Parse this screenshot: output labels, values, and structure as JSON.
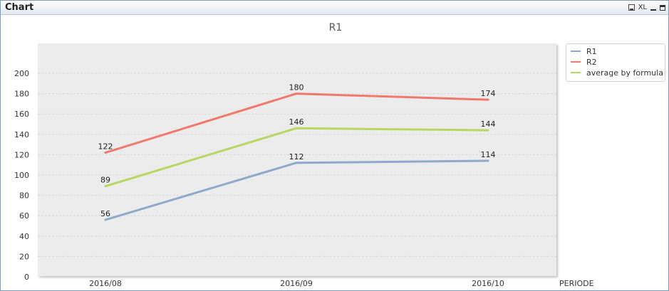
{
  "window": {
    "title": "Chart",
    "icons": [
      "print-icon",
      "xl-icon",
      "minimize-icon",
      "maximize-icon"
    ],
    "xl_label": "XL"
  },
  "chart_data": {
    "type": "line",
    "title": "R1",
    "xlabel": "PERIODE",
    "ylabel": "",
    "categories": [
      "2016/08",
      "2016/09",
      "2016/10"
    ],
    "ylim": [
      0,
      200
    ],
    "yticks": [
      0,
      20,
      40,
      60,
      80,
      100,
      120,
      140,
      160,
      180,
      200
    ],
    "grid": true,
    "legend_position": "right",
    "series": [
      {
        "name": "R1",
        "values": [
          56,
          112,
          114
        ],
        "color": "#8eaacb"
      },
      {
        "name": "R2",
        "values": [
          122,
          180,
          174
        ],
        "color": "#f07a6a"
      },
      {
        "name": "average by formula",
        "values": [
          89,
          146,
          144
        ],
        "color": "#b8d661"
      }
    ]
  }
}
